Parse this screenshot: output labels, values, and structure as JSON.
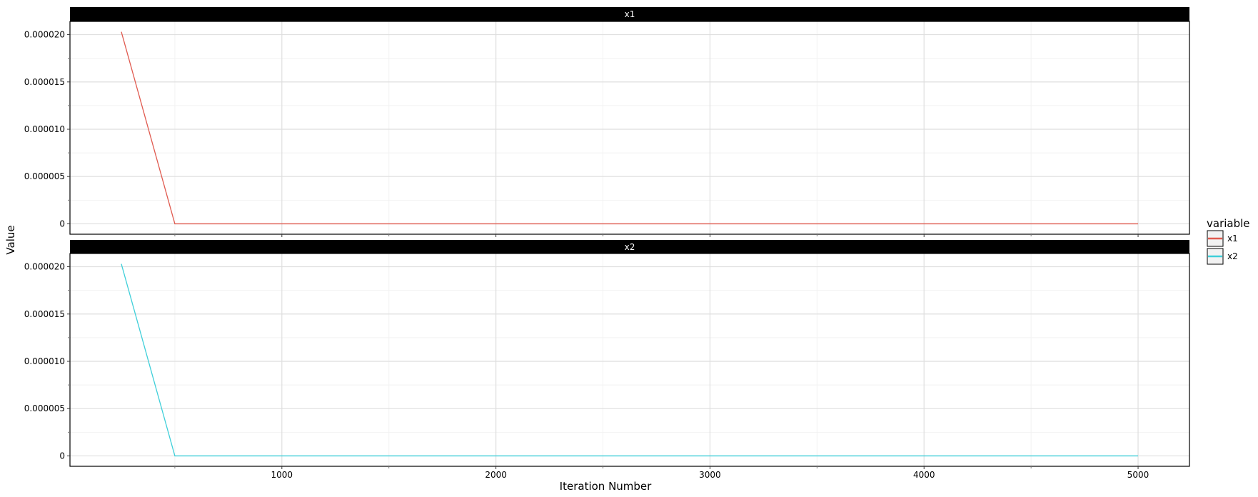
{
  "chart_data": {
    "type": "line",
    "xlabel": "Iteration Number",
    "ylabel": "Value",
    "x_ticks": [
      1000,
      2000,
      3000,
      4000,
      5000
    ],
    "y_ticks": [
      {
        "value": 0,
        "label": "0"
      },
      {
        "value": 5e-06,
        "label": "0.000005"
      },
      {
        "value": 1e-05,
        "label": "0.000010"
      },
      {
        "value": 1.5e-05,
        "label": "0.000015"
      },
      {
        "value": 2e-05,
        "label": "0.000020"
      }
    ],
    "xlim": [
      10,
      5240
    ],
    "ylim": [
      -1.1e-06,
      2.14e-05
    ],
    "grid": true,
    "legend": {
      "title": "variable",
      "placement": "right",
      "entries": [
        {
          "label": "x1",
          "color": "#e05a4f"
        },
        {
          "label": "x2",
          "color": "#3fcfd9"
        }
      ]
    },
    "panels": [
      {
        "strip": "x1",
        "color": "#e05a4f",
        "x": [
          250,
          500,
          750,
          1000,
          1250,
          1500,
          1750,
          2000,
          2250,
          2500,
          2750,
          3000,
          3250,
          3500,
          3750,
          4000,
          4250,
          4500,
          4750,
          5000
        ],
        "y": [
          2.03e-05,
          0,
          0,
          0,
          0,
          0,
          0,
          0,
          0,
          0,
          0,
          0,
          0,
          0,
          0,
          0,
          0,
          0,
          0,
          0
        ]
      },
      {
        "strip": "x2",
        "color": "#3fcfd9",
        "x": [
          250,
          500,
          750,
          1000,
          1250,
          1500,
          1750,
          2000,
          2250,
          2500,
          2750,
          3000,
          3250,
          3500,
          3750,
          4000,
          4250,
          4500,
          4750,
          5000
        ],
        "y": [
          2.03e-05,
          0,
          0,
          0,
          0,
          0,
          0,
          0,
          0,
          0,
          0,
          0,
          0,
          0,
          0,
          0,
          0,
          0,
          0,
          0
        ]
      }
    ]
  }
}
